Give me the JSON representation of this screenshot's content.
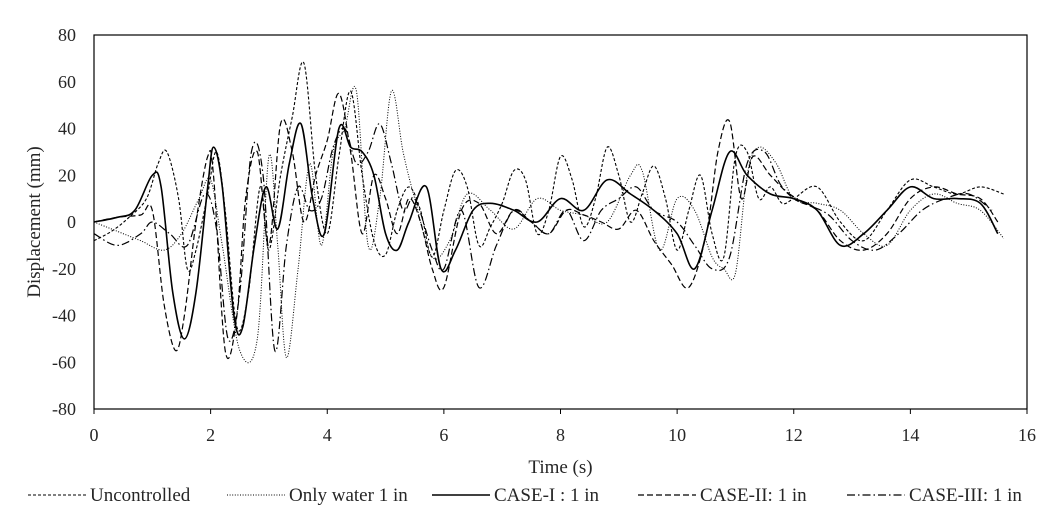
{
  "chart_data": {
    "type": "line",
    "title": "",
    "xlabel": "Time (s)",
    "ylabel": "Displacement (mm)",
    "xlim": [
      0,
      16
    ],
    "ylim": [
      -80,
      80
    ],
    "x_ticks": [
      "0",
      "2",
      "4",
      "6",
      "8",
      "10",
      "12",
      "14",
      "16"
    ],
    "y_ticks": [
      "80",
      "60",
      "40",
      "20",
      "0",
      "-20",
      "-40",
      "-60",
      "-80"
    ],
    "grid": false,
    "legend_position": "bottom",
    "series": [
      {
        "name": "Uncontrolled",
        "style": "short-dash",
        "x": [
          0,
          0.3,
          0.6,
          0.9,
          1.1,
          1.25,
          1.45,
          1.6,
          1.75,
          1.95,
          2.1,
          2.25,
          2.45,
          2.65,
          2.85,
          3.0,
          3.2,
          3.4,
          3.6,
          3.8,
          4.0,
          4.2,
          4.4,
          4.6,
          4.8,
          5.0,
          5.2,
          5.4,
          5.6,
          5.8,
          6.0,
          6.2,
          6.4,
          6.6,
          6.8,
          7.0,
          7.2,
          7.4,
          7.6,
          7.8,
          8.0,
          8.2,
          8.4,
          8.6,
          8.8,
          9.0,
          9.2,
          9.4,
          9.6,
          9.8,
          10.0,
          10.2,
          10.4,
          10.6,
          10.8,
          11.0,
          11.2,
          11.4,
          11.6,
          11.8,
          12.0,
          12.4,
          12.8,
          13.2,
          13.6,
          14.0,
          14.4,
          14.8,
          15.2,
          15.6
        ],
        "y": [
          -8,
          -4,
          2,
          10,
          25,
          30,
          10,
          -20,
          -12,
          12,
          30,
          5,
          -45,
          -30,
          15,
          -12,
          20,
          45,
          68,
          20,
          -5,
          28,
          56,
          20,
          -8,
          -14,
          5,
          15,
          5,
          -15,
          5,
          22,
          15,
          -10,
          -2,
          8,
          22,
          18,
          -5,
          5,
          28,
          18,
          -2,
          10,
          32,
          20,
          0,
          12,
          24,
          10,
          -12,
          5,
          20,
          -5,
          -15,
          28,
          30,
          10,
          15,
          8,
          10,
          15,
          0,
          -8,
          5,
          18,
          15,
          12,
          15,
          12
        ]
      },
      {
        "name": "Only water 1 in",
        "style": "dotted",
        "x": [
          0,
          0.4,
          0.8,
          1.2,
          1.5,
          1.8,
          2.0,
          2.2,
          2.5,
          2.8,
          3.0,
          3.15,
          3.3,
          3.5,
          3.7,
          3.9,
          4.1,
          4.3,
          4.5,
          4.7,
          4.9,
          5.1,
          5.3,
          5.5,
          5.8,
          6.1,
          6.4,
          6.8,
          7.2,
          7.6,
          8.0,
          8.4,
          8.8,
          9.2,
          9.4,
          9.7,
          10.0,
          10.3,
          10.6,
          10.8,
          11.0,
          11.2,
          11.4,
          11.7,
          12.0,
          12.4,
          12.8,
          13.2,
          13.6,
          14.0,
          14.4,
          14.8,
          15.2,
          15.6
        ],
        "y": [
          0,
          -4,
          -8,
          -12,
          -5,
          10,
          18,
          -10,
          -55,
          -50,
          28,
          -10,
          -58,
          -20,
          25,
          -10,
          30,
          40,
          56,
          -10,
          10,
          56,
          30,
          10,
          -15,
          -8,
          12,
          5,
          -3,
          10,
          5,
          3,
          0,
          20,
          22,
          -12,
          10,
          5,
          -15,
          -20,
          -22,
          20,
          32,
          25,
          10,
          8,
          5,
          -5,
          -10,
          5,
          12,
          8,
          5,
          -7
        ]
      },
      {
        "name": "CASE-I : 1 in",
        "style": "solid",
        "x": [
          0,
          0.4,
          0.7,
          1.0,
          1.15,
          1.35,
          1.55,
          1.75,
          1.95,
          2.05,
          2.2,
          2.4,
          2.55,
          2.75,
          2.95,
          3.15,
          3.35,
          3.55,
          3.75,
          3.95,
          4.2,
          4.4,
          4.6,
          4.8,
          5.0,
          5.2,
          5.4,
          5.7,
          5.95,
          6.2,
          6.5,
          6.8,
          7.2,
          7.6,
          8.0,
          8.4,
          8.8,
          9.2,
          9.6,
          10.0,
          10.3,
          10.6,
          10.9,
          11.2,
          11.6,
          12.0,
          12.4,
          12.8,
          13.2,
          13.6,
          14.0,
          14.4,
          14.8,
          15.2,
          15.5
        ],
        "y": [
          0,
          2,
          5,
          20,
          15,
          -30,
          -50,
          -30,
          15,
          32,
          15,
          -40,
          -45,
          -10,
          15,
          -3,
          25,
          42,
          10,
          -5,
          40,
          32,
          30,
          20,
          -5,
          -12,
          0,
          15,
          -20,
          -12,
          5,
          8,
          5,
          0,
          10,
          5,
          18,
          12,
          5,
          -5,
          -20,
          5,
          30,
          20,
          12,
          10,
          5,
          -10,
          -5,
          5,
          15,
          10,
          10,
          8,
          -5
        ]
      },
      {
        "name": "CASE-II: 1 in",
        "style": "dashed",
        "x": [
          0,
          0.4,
          0.8,
          1.0,
          1.2,
          1.4,
          1.55,
          1.75,
          1.95,
          2.05,
          2.25,
          2.45,
          2.6,
          2.8,
          3.0,
          3.2,
          3.4,
          3.6,
          3.8,
          4.0,
          4.2,
          4.4,
          4.6,
          4.8,
          5.0,
          5.2,
          5.4,
          5.6,
          5.8,
          6.0,
          6.3,
          6.6,
          6.9,
          7.2,
          7.5,
          7.8,
          8.1,
          8.4,
          8.7,
          9.0,
          9.3,
          9.6,
          9.9,
          10.2,
          10.5,
          10.7,
          10.9,
          11.1,
          11.3,
          11.6,
          12.0,
          12.4,
          12.8,
          13.2,
          13.6,
          14.0,
          14.4,
          14.8,
          15.2,
          15.5
        ],
        "y": [
          0,
          2,
          3,
          5,
          -35,
          -55,
          -40,
          0,
          28,
          20,
          -55,
          -40,
          10,
          30,
          -10,
          42,
          30,
          0,
          20,
          35,
          55,
          30,
          -5,
          20,
          10,
          -5,
          10,
          0,
          -20,
          -28,
          5,
          8,
          -5,
          5,
          0,
          -5,
          5,
          3,
          0,
          -3,
          5,
          -8,
          -18,
          -28,
          -5,
          30,
          43,
          10,
          28,
          20,
          10,
          5,
          -8,
          -12,
          -5,
          10,
          15,
          12,
          10,
          0
        ]
      },
      {
        "name": "CASE-III: 1 in",
        "style": "dash-dot",
        "x": [
          0,
          0.4,
          0.8,
          1.0,
          1.3,
          1.6,
          1.9,
          2.1,
          2.3,
          2.5,
          2.7,
          2.9,
          3.1,
          3.3,
          3.5,
          3.7,
          3.9,
          4.1,
          4.3,
          4.5,
          4.7,
          4.9,
          5.1,
          5.3,
          5.5,
          5.8,
          6.0,
          6.3,
          6.6,
          6.9,
          7.2,
          7.5,
          7.8,
          8.1,
          8.4,
          8.7,
          9.0,
          9.3,
          9.6,
          10.0,
          10.3,
          10.6,
          10.9,
          11.2,
          11.5,
          11.8,
          12.2,
          12.6,
          13.0,
          13.4,
          13.8,
          14.2,
          14.6,
          15.0,
          15.4
        ],
        "y": [
          -5,
          -10,
          -5,
          0,
          -5,
          -10,
          12,
          -3,
          -50,
          -30,
          30,
          20,
          -55,
          -10,
          15,
          5,
          10,
          32,
          40,
          25,
          30,
          42,
          25,
          5,
          10,
          -12,
          -20,
          5,
          -28,
          -10,
          5,
          0,
          -5,
          5,
          -8,
          5,
          10,
          15,
          5,
          0,
          -10,
          -20,
          -15,
          25,
          30,
          15,
          8,
          3,
          -8,
          -12,
          -5,
          5,
          10,
          12,
          5
        ]
      }
    ]
  }
}
